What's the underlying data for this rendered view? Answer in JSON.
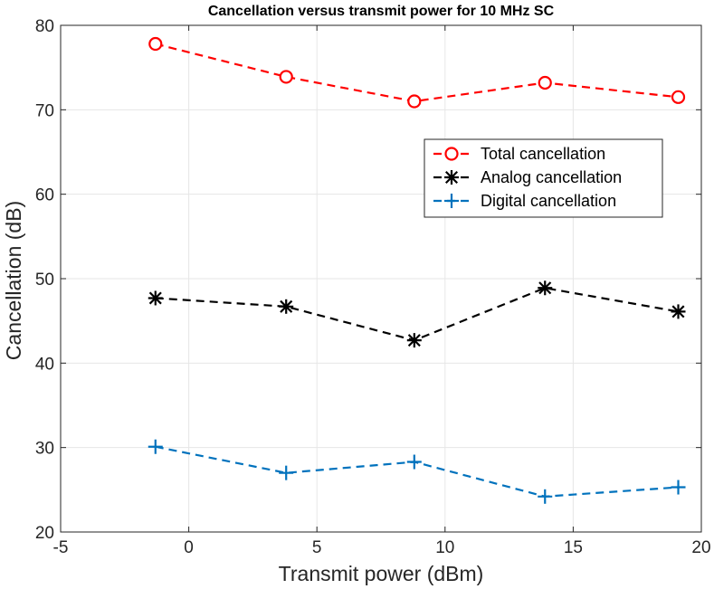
{
  "chart_data": {
    "type": "line",
    "title": "Cancellation versus transmit power for 10 MHz SC",
    "xlabel": "Transmit power (dBm)",
    "ylabel": "Cancellation (dB)",
    "xlim": [
      -5,
      20
    ],
    "ylim": [
      20,
      80
    ],
    "xticks": [
      -5,
      0,
      5,
      10,
      15,
      20
    ],
    "yticks": [
      20,
      30,
      40,
      50,
      60,
      70,
      80
    ],
    "grid": true,
    "legend_position": "upper-right",
    "x": [
      -1.3,
      3.8,
      8.8,
      13.9,
      19.1
    ],
    "series": [
      {
        "name": "Total cancellation",
        "marker": "circle",
        "line": "dashed",
        "color": "#ff0000",
        "values": [
          77.8,
          73.9,
          71.0,
          73.2,
          71.5
        ]
      },
      {
        "name": "Analog cancellation",
        "marker": "asterisk",
        "line": "dashed",
        "color": "#000000",
        "values": [
          47.7,
          46.7,
          42.7,
          48.9,
          46.1
        ]
      },
      {
        "name": "Digital cancellation",
        "marker": "plus",
        "line": "dashed",
        "color": "#0072bd",
        "values": [
          30.1,
          27.0,
          28.3,
          24.2,
          25.3
        ]
      }
    ]
  }
}
